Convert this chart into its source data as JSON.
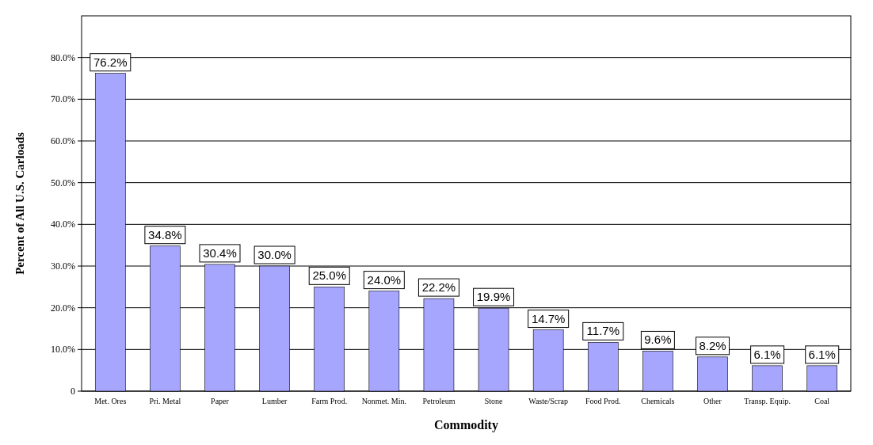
{
  "chart_data": {
    "type": "bar",
    "xlabel": "Commodity",
    "ylabel": "Percent of All U.S. Carloads",
    "categories": [
      "Met. Ores",
      "Pri. Metal",
      "Paper",
      "Lumber",
      "Farm Prod.",
      "Nonmet. Min.",
      "Petroleum",
      "Stone",
      "Waste/Scrap",
      "Food Prod.",
      "Chemicals",
      "Other",
      "Transp. Equip.",
      "Coal"
    ],
    "values": [
      76.2,
      34.8,
      30.4,
      30.0,
      25.0,
      24.0,
      22.2,
      19.9,
      14.7,
      11.7,
      9.6,
      8.2,
      6.1,
      6.1
    ],
    "value_labels": [
      "76.2%",
      "34.8%",
      "30.4%",
      "30.0%",
      "25.0%",
      "24.0%",
      "22.2%",
      "19.9%",
      "14.7%",
      "11.7%",
      "9.6%",
      "8.2%",
      "6.1%",
      "6.1%"
    ],
    "color": "#a6a6ff",
    "ylim": [
      0,
      90
    ],
    "yticks": [
      {
        "value": 0,
        "label": "0"
      },
      {
        "value": 10,
        "label": "10.0%"
      },
      {
        "value": 20,
        "label": "20.0%"
      },
      {
        "value": 30,
        "label": "30.0%"
      },
      {
        "value": 40,
        "label": "40.0%"
      },
      {
        "value": 50,
        "label": "50.0%"
      },
      {
        "value": 60,
        "label": "60.0%"
      },
      {
        "value": 70,
        "label": "70.0%"
      },
      {
        "value": 80,
        "label": "80.0%"
      }
    ],
    "grid": "y"
  }
}
